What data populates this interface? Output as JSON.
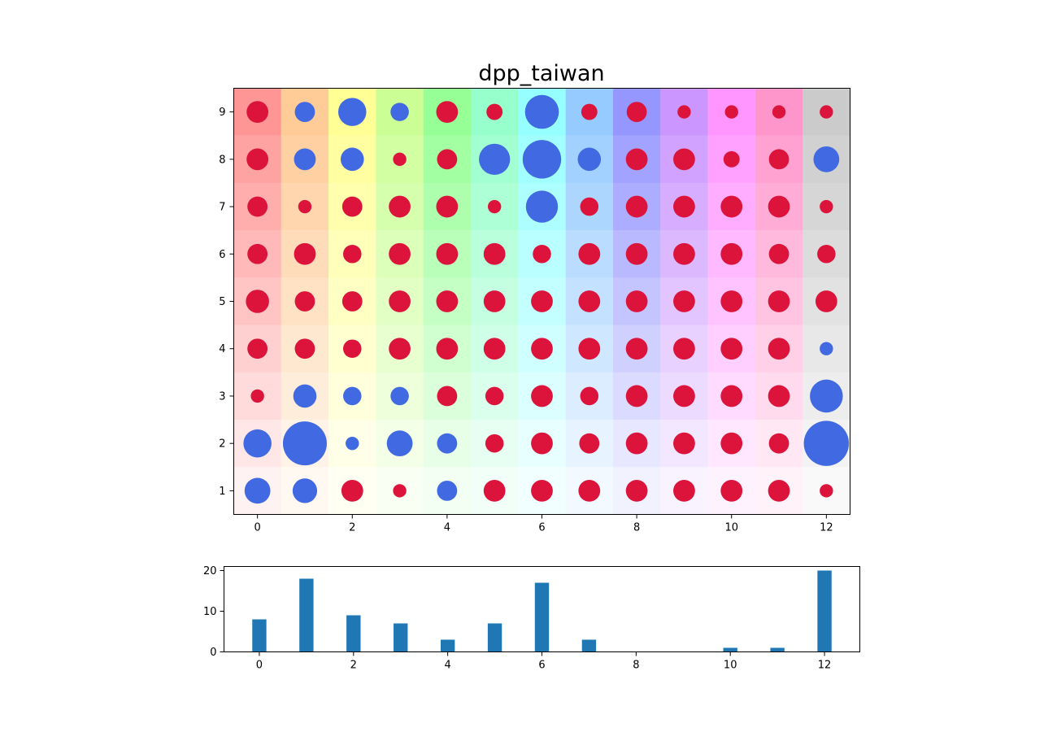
{
  "chart_data": [
    {
      "type": "scatter",
      "title": "dpp_taiwan",
      "xlabel": "",
      "ylabel": "",
      "xlim": [
        -0.5,
        12.5
      ],
      "ylim": [
        0.5,
        9.5
      ],
      "x_ticks": [
        0,
        2,
        4,
        6,
        8,
        10,
        12
      ],
      "y_ticks": [
        1,
        2,
        3,
        4,
        5,
        6,
        7,
        8,
        9
      ],
      "grid": false,
      "legend": "none",
      "marker_colors": {
        "positive": "#dc143c",
        "negative": "#4169e1"
      },
      "background_hues": [
        "#ff0000",
        "#ff8000",
        "#ffff00",
        "#80ff00",
        "#00ff00",
        "#00ff80",
        "#00ffff",
        "#0080ff",
        "#0000ff",
        "#8000ff",
        "#ff00ff",
        "#ff0080",
        "#808080"
      ],
      "points": [
        [
          0,
          1,
          -8
        ],
        [
          1,
          1,
          -7
        ],
        [
          2,
          1,
          5
        ],
        [
          3,
          1,
          1
        ],
        [
          4,
          1,
          -4
        ],
        [
          5,
          1,
          5
        ],
        [
          6,
          1,
          5
        ],
        [
          7,
          1,
          5
        ],
        [
          8,
          1,
          5
        ],
        [
          9,
          1,
          5
        ],
        [
          10,
          1,
          5
        ],
        [
          11,
          1,
          5
        ],
        [
          12,
          1,
          1
        ],
        [
          0,
          2,
          -10
        ],
        [
          1,
          2,
          -30
        ],
        [
          2,
          2,
          -1
        ],
        [
          3,
          2,
          -8
        ],
        [
          4,
          2,
          -4
        ],
        [
          5,
          2,
          3
        ],
        [
          6,
          2,
          5
        ],
        [
          7,
          2,
          4
        ],
        [
          8,
          2,
          5
        ],
        [
          9,
          2,
          5
        ],
        [
          10,
          2,
          5
        ],
        [
          11,
          2,
          4
        ],
        [
          12,
          2,
          -32
        ],
        [
          0,
          3,
          1
        ],
        [
          1,
          3,
          -6
        ],
        [
          2,
          3,
          -3
        ],
        [
          3,
          3,
          -3
        ],
        [
          4,
          3,
          4
        ],
        [
          5,
          3,
          3
        ],
        [
          6,
          3,
          5
        ],
        [
          7,
          3,
          3
        ],
        [
          8,
          3,
          5
        ],
        [
          9,
          3,
          5
        ],
        [
          10,
          3,
          5
        ],
        [
          11,
          3,
          5
        ],
        [
          12,
          3,
          -15
        ],
        [
          0,
          4,
          4
        ],
        [
          1,
          4,
          4
        ],
        [
          2,
          4,
          3
        ],
        [
          3,
          4,
          5
        ],
        [
          4,
          4,
          5
        ],
        [
          5,
          4,
          5
        ],
        [
          6,
          4,
          5
        ],
        [
          7,
          4,
          5
        ],
        [
          8,
          4,
          5
        ],
        [
          9,
          4,
          5
        ],
        [
          10,
          4,
          5
        ],
        [
          11,
          4,
          5
        ],
        [
          12,
          4,
          -1
        ],
        [
          0,
          5,
          6
        ],
        [
          1,
          5,
          4
        ],
        [
          2,
          5,
          4
        ],
        [
          3,
          5,
          5
        ],
        [
          4,
          5,
          5
        ],
        [
          5,
          5,
          5
        ],
        [
          6,
          5,
          5
        ],
        [
          7,
          5,
          5
        ],
        [
          8,
          5,
          5
        ],
        [
          9,
          5,
          5
        ],
        [
          10,
          5,
          5
        ],
        [
          11,
          5,
          5
        ],
        [
          12,
          5,
          5
        ],
        [
          0,
          6,
          4
        ],
        [
          1,
          6,
          5
        ],
        [
          2,
          6,
          3
        ],
        [
          3,
          6,
          5
        ],
        [
          4,
          6,
          5
        ],
        [
          5,
          6,
          5
        ],
        [
          6,
          6,
          3
        ],
        [
          7,
          6,
          5
        ],
        [
          8,
          6,
          5
        ],
        [
          9,
          6,
          5
        ],
        [
          10,
          6,
          5
        ],
        [
          11,
          6,
          4
        ],
        [
          12,
          6,
          3
        ],
        [
          0,
          7,
          4
        ],
        [
          1,
          7,
          1
        ],
        [
          2,
          7,
          4
        ],
        [
          3,
          7,
          5
        ],
        [
          4,
          7,
          5
        ],
        [
          5,
          7,
          1
        ],
        [
          6,
          7,
          -14
        ],
        [
          7,
          7,
          3
        ],
        [
          8,
          7,
          5
        ],
        [
          9,
          7,
          5
        ],
        [
          10,
          7,
          5
        ],
        [
          11,
          7,
          5
        ],
        [
          12,
          7,
          1
        ],
        [
          0,
          8,
          5
        ],
        [
          1,
          8,
          -5
        ],
        [
          2,
          8,
          -6
        ],
        [
          3,
          8,
          1
        ],
        [
          4,
          8,
          4
        ],
        [
          5,
          8,
          -13
        ],
        [
          6,
          8,
          -22
        ],
        [
          7,
          8,
          -6
        ],
        [
          8,
          8,
          5
        ],
        [
          9,
          8,
          5
        ],
        [
          10,
          8,
          2
        ],
        [
          11,
          8,
          4
        ],
        [
          12,
          8,
          -8
        ],
        [
          0,
          9,
          5
        ],
        [
          1,
          9,
          -4
        ],
        [
          2,
          9,
          -10
        ],
        [
          3,
          9,
          -3
        ],
        [
          4,
          9,
          5
        ],
        [
          5,
          9,
          2
        ],
        [
          6,
          9,
          -16
        ],
        [
          7,
          9,
          2
        ],
        [
          8,
          9,
          4
        ],
        [
          9,
          9,
          1
        ],
        [
          10,
          9,
          1
        ],
        [
          11,
          9,
          1
        ],
        [
          12,
          9,
          1
        ]
      ]
    },
    {
      "type": "bar",
      "title": "",
      "xlabel": "",
      "ylabel": "",
      "x": [
        0,
        1,
        2,
        3,
        4,
        5,
        6,
        7,
        8,
        9,
        10,
        11,
        12
      ],
      "values": [
        8,
        18,
        9,
        7,
        3,
        7,
        17,
        3,
        0,
        0,
        1,
        1,
        20
      ],
      "xlim": [
        -0.75,
        12.75
      ],
      "ylim": [
        0,
        20
      ],
      "x_ticks": [
        0,
        2,
        4,
        6,
        8,
        10,
        12
      ],
      "y_ticks": [
        0,
        10,
        20
      ],
      "bar_color": "#1f77b4",
      "grid": false
    }
  ]
}
